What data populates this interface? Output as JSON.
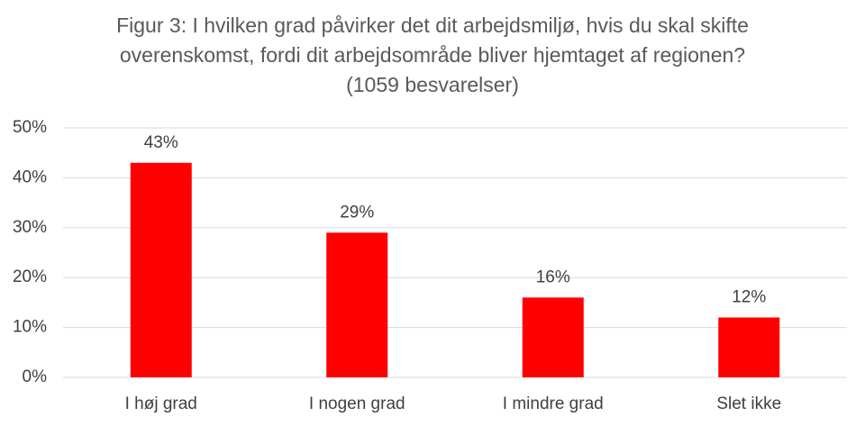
{
  "chart_data": {
    "type": "bar",
    "title": "Figur 3: I hvilken grad påvirker det dit arbejdsmiljø, hvis du skal skifte overenskomst, fordi dit arbejdsområde bliver hjemtaget af regionen? (1059 besvarelser)",
    "categories": [
      "I høj grad",
      "I nogen grad",
      "I mindre grad",
      "Slet ikke"
    ],
    "values": [
      43,
      29,
      16,
      12
    ],
    "value_labels": [
      "43%",
      "29%",
      "16%",
      "12%"
    ],
    "color": "#ff0000",
    "ylim": [
      0,
      50
    ],
    "yticks": [
      {
        "value": 0,
        "label": "0%"
      },
      {
        "value": 10,
        "label": "10%"
      },
      {
        "value": 20,
        "label": "20%"
      },
      {
        "value": 30,
        "label": "30%"
      },
      {
        "value": 40,
        "label": "40%"
      },
      {
        "value": 50,
        "label": "50%"
      }
    ],
    "grid": true
  }
}
